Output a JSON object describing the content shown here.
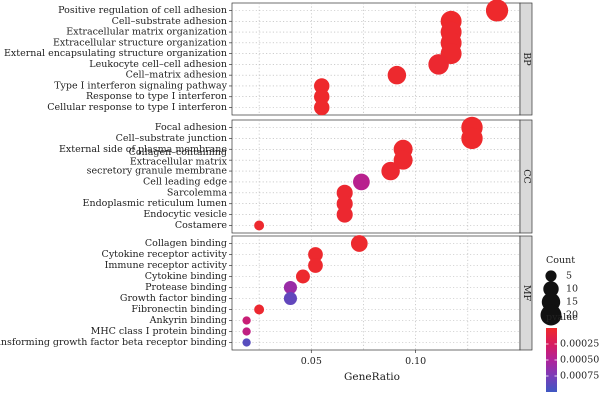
{
  "chart_data": {
    "type": "scatter",
    "xlabel": "GeneRatio",
    "x_ticks": [
      0.05,
      0.1
    ],
    "xlim": [
      0.012,
      0.15
    ],
    "panels": [
      {
        "name": "BP",
        "terms": [
          {
            "label": "Positive regulation of cell adhesion",
            "x": 0.139,
            "count": 23,
            "pvalue": 1e-05
          },
          {
            "label": "Cell–substrate adhesion",
            "x": 0.117,
            "count": 20,
            "pvalue": 1e-05
          },
          {
            "label": "Extracellular matrix organization",
            "x": 0.117,
            "count": 20,
            "pvalue": 2e-05
          },
          {
            "label": "Extracellular structure organization",
            "x": 0.117,
            "count": 20,
            "pvalue": 2e-05
          },
          {
            "label": "External encapsulating structure organization",
            "x": 0.117,
            "count": 20,
            "pvalue": 2e-05
          },
          {
            "label": "Leukocyte cell–cell adhesion",
            "x": 0.111,
            "count": 19,
            "pvalue": 3e-05
          },
          {
            "label": "Cell–matrix adhesion",
            "x": 0.091,
            "count": 15,
            "pvalue": 2e-05
          },
          {
            "label": "Type I interferon signaling pathway",
            "x": 0.055,
            "count": 10,
            "pvalue": 1e-05
          },
          {
            "label": "Response to type I interferon",
            "x": 0.055,
            "count": 10,
            "pvalue": 1e-05
          },
          {
            "label": "Cellular response to type I interferon",
            "x": 0.055,
            "count": 10,
            "pvalue": 1e-05
          }
        ]
      },
      {
        "name": "CC",
        "terms": [
          {
            "label": "Focal adhesion",
            "x": 0.127,
            "count": 21,
            "pvalue": 1e-05
          },
          {
            "label": "Cell–substrate junction",
            "x": 0.127,
            "count": 21,
            "pvalue": 1e-05
          },
          {
            "label": "External side of plasma membrane",
            "x": 0.094,
            "count": 16,
            "pvalue": 2e-05
          },
          {
            "label": "Collagen–containing\nExtracellular matrix",
            "x": 0.094,
            "count": 16,
            "pvalue": 2e-05
          },
          {
            "label": "secretory granule membrane",
            "x": 0.088,
            "count": 15,
            "pvalue": 3e-05
          },
          {
            "label": "Cell leading edge",
            "x": 0.074,
            "count": 12,
            "pvalue": 0.00045
          },
          {
            "label": "Sarcolemma",
            "x": 0.066,
            "count": 11,
            "pvalue": 3e-05
          },
          {
            "label": "Endoplasmic reticulum lumen",
            "x": 0.066,
            "count": 11,
            "pvalue": 3e-05
          },
          {
            "label": "Endocytic vesicle",
            "x": 0.066,
            "count": 11,
            "pvalue": 3e-05
          },
          {
            "label": "Costamere",
            "x": 0.025,
            "count": 4,
            "pvalue": 2e-05
          }
        ]
      },
      {
        "name": "MF",
        "terms": [
          {
            "label": "Collagen binding",
            "x": 0.073,
            "count": 12,
            "pvalue": 2e-05
          },
          {
            "label": "Cytokine receptor activity",
            "x": 0.052,
            "count": 9,
            "pvalue": 2e-05
          },
          {
            "label": "Immune receptor activity",
            "x": 0.052,
            "count": 9,
            "pvalue": 2e-05
          },
          {
            "label": "Cytokine binding",
            "x": 0.046,
            "count": 8,
            "pvalue": 2e-05
          },
          {
            "label": "Protease binding",
            "x": 0.04,
            "count": 7,
            "pvalue": 0.0006
          },
          {
            "label": "Growth factor binding",
            "x": 0.04,
            "count": 7,
            "pvalue": 0.00085
          },
          {
            "label": "Fibronectin binding",
            "x": 0.025,
            "count": 4,
            "pvalue": 3e-05
          },
          {
            "label": "Ankyrin binding",
            "x": 0.019,
            "count": 3,
            "pvalue": 0.00035
          },
          {
            "label": "MHC class I protein binding",
            "x": 0.019,
            "count": 3,
            "pvalue": 0.0004
          },
          {
            "label": "Transforming growth factor beta receptor binding",
            "x": 0.019,
            "count": 3,
            "pvalue": 0.0009
          }
        ]
      }
    ],
    "legend_count": {
      "title": "Count",
      "values": [
        5,
        10,
        15,
        20
      ],
      "labels": [
        "5",
        "10",
        "15",
        "20"
      ]
    },
    "legend_pvalue": {
      "title": "pvalue",
      "min": 0.0,
      "max": 0.001,
      "breaks": [
        0.00025,
        0.0005,
        0.00075
      ],
      "labels": [
        "0.00025",
        "0.00050",
        "0.00075"
      ],
      "colors": [
        "#ef2a2a",
        "#d81b5e",
        "#b0229a",
        "#7a3cb8",
        "#3f58c2"
      ]
    },
    "grid": true,
    "legend_position": "right"
  }
}
